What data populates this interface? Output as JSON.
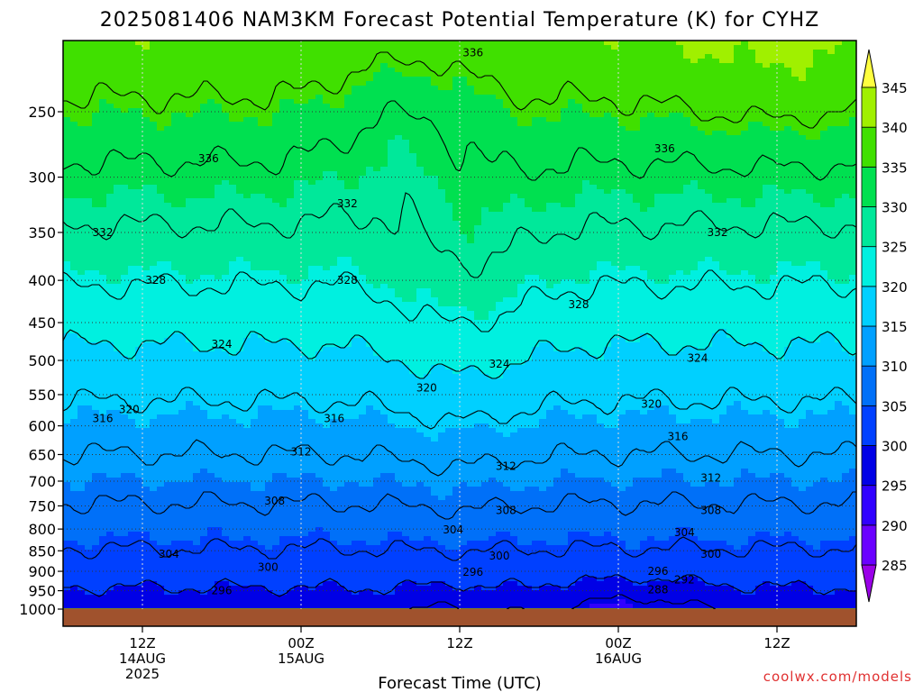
{
  "chart_data": {
    "type": "heatmap",
    "title": "2025081406 NAM3KM Forecast Potential Temperature (K) for CYHZ",
    "xlabel": "Forecast Time (UTC)",
    "ylabel": "",
    "credit": "coolwx.com/models",
    "y_axis": {
      "scale": "log",
      "direction": "inverted",
      "range": [
        1000,
        200
      ],
      "ticks": [
        250,
        300,
        350,
        400,
        450,
        500,
        550,
        600,
        650,
        700,
        750,
        800,
        850,
        900,
        950,
        1000
      ]
    },
    "x_axis": {
      "range_hours": [
        6,
        66
      ],
      "ticks": [
        {
          "hour": 12,
          "l1": "12Z",
          "l2": "14AUG",
          "l3": "2025"
        },
        {
          "hour": 24,
          "l1": "00Z",
          "l2": "15AUG",
          "l3": ""
        },
        {
          "hour": 36,
          "l1": "12Z",
          "l2": "",
          "l3": ""
        },
        {
          "hour": 48,
          "l1": "00Z",
          "l2": "16AUG",
          "l3": ""
        },
        {
          "hour": 60,
          "l1": "12Z",
          "l2": "",
          "l3": ""
        }
      ]
    },
    "colorbar": {
      "levels": [
        285,
        290,
        295,
        300,
        305,
        310,
        315,
        320,
        325,
        330,
        335,
        340,
        345
      ],
      "colors": [
        "#9a00e8",
        "#6a00ff",
        "#3000ff",
        "#0000e6",
        "#0040ff",
        "#0070f8",
        "#00a0ff",
        "#00d0ff",
        "#00f0e0",
        "#00e89a",
        "#00e050",
        "#40e000",
        "#a0f000",
        "#f8f800",
        "#ffff40"
      ]
    },
    "contour_levels": [
      288,
      292,
      296,
      300,
      304,
      308,
      312,
      316,
      320,
      324,
      328,
      332,
      336
    ],
    "contour_labels": [
      {
        "value": "336",
        "hour": 37.0,
        "p": 212
      },
      {
        "value": "336",
        "hour": 17.0,
        "p": 285
      },
      {
        "value": "336",
        "hour": 51.5,
        "p": 277
      },
      {
        "value": "332",
        "hour": 9.0,
        "p": 350
      },
      {
        "value": "332",
        "hour": 27.5,
        "p": 323
      },
      {
        "value": "332",
        "hour": 55.5,
        "p": 350
      },
      {
        "value": "328",
        "hour": 13.0,
        "p": 400
      },
      {
        "value": "328",
        "hour": 27.5,
        "p": 400
      },
      {
        "value": "328",
        "hour": 45.0,
        "p": 428
      },
      {
        "value": "324",
        "hour": 18.0,
        "p": 478
      },
      {
        "value": "324",
        "hour": 39.0,
        "p": 505
      },
      {
        "value": "324",
        "hour": 54.0,
        "p": 497
      },
      {
        "value": "320",
        "hour": 11.0,
        "p": 573
      },
      {
        "value": "320",
        "hour": 33.5,
        "p": 540
      },
      {
        "value": "320",
        "hour": 50.5,
        "p": 565
      },
      {
        "value": "316",
        "hour": 9.0,
        "p": 588
      },
      {
        "value": "316",
        "hour": 26.5,
        "p": 588
      },
      {
        "value": "316",
        "hour": 52.5,
        "p": 618
      },
      {
        "value": "312",
        "hour": 24.0,
        "p": 645
      },
      {
        "value": "312",
        "hour": 39.5,
        "p": 672
      },
      {
        "value": "312",
        "hour": 55.0,
        "p": 694
      },
      {
        "value": "308",
        "hour": 22.0,
        "p": 740
      },
      {
        "value": "308",
        "hour": 39.5,
        "p": 760
      },
      {
        "value": "308",
        "hour": 55.0,
        "p": 760
      },
      {
        "value": "304",
        "hour": 14.0,
        "p": 858
      },
      {
        "value": "304",
        "hour": 35.5,
        "p": 802
      },
      {
        "value": "304",
        "hour": 53.0,
        "p": 808
      },
      {
        "value": "300",
        "hour": 21.5,
        "p": 890
      },
      {
        "value": "300",
        "hour": 39.0,
        "p": 862
      },
      {
        "value": "300",
        "hour": 55.0,
        "p": 858
      },
      {
        "value": "296",
        "hour": 18.0,
        "p": 950
      },
      {
        "value": "296",
        "hour": 37.0,
        "p": 902
      },
      {
        "value": "296",
        "hour": 51.0,
        "p": 900
      },
      {
        "value": "292",
        "hour": 53.0,
        "p": 922
      },
      {
        "value": "288",
        "hour": 51.0,
        "p": 948
      }
    ]
  }
}
